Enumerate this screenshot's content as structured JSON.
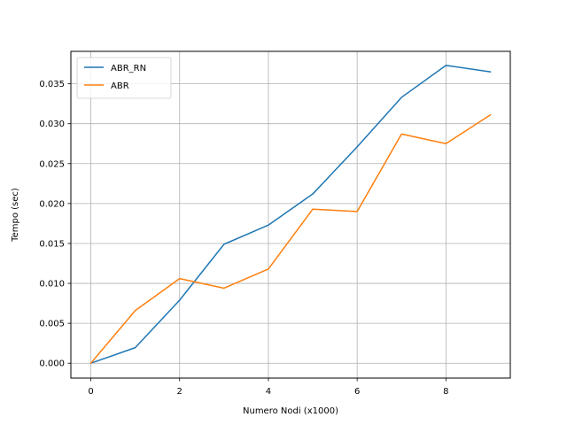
{
  "chart_data": {
    "type": "line",
    "title": "",
    "xlabel": "Numero Nodi (x1000)",
    "ylabel": "Tempo (sec)",
    "x": [
      0,
      1,
      2,
      3,
      4,
      5,
      6,
      7,
      8,
      9
    ],
    "xlim": [
      -0.45,
      9.45
    ],
    "ylim": [
      -0.00186,
      0.03906
    ],
    "xticks": [
      0,
      2,
      4,
      6,
      8
    ],
    "xtick_labels": [
      "0",
      "2",
      "4",
      "6",
      "8"
    ],
    "yticks": [
      0.0,
      0.005,
      0.01,
      0.015,
      0.02,
      0.025,
      0.03,
      0.035
    ],
    "ytick_labels": [
      "0.000",
      "0.005",
      "0.010",
      "0.015",
      "0.020",
      "0.025",
      "0.030",
      "0.035"
    ],
    "grid": true,
    "legend_position": "top-left",
    "series": [
      {
        "name": "ABR_RN",
        "color": "#1f77b4",
        "values": [
          0.0,
          0.00195,
          0.0079,
          0.0149,
          0.0173,
          0.0212,
          0.0271,
          0.0333,
          0.0373,
          0.0365
        ]
      },
      {
        "name": "ABR",
        "color": "#ff7f0e",
        "values": [
          0.0,
          0.0066,
          0.0106,
          0.0094,
          0.0118,
          0.0193,
          0.019,
          0.0287,
          0.0275,
          0.0311
        ]
      }
    ]
  }
}
